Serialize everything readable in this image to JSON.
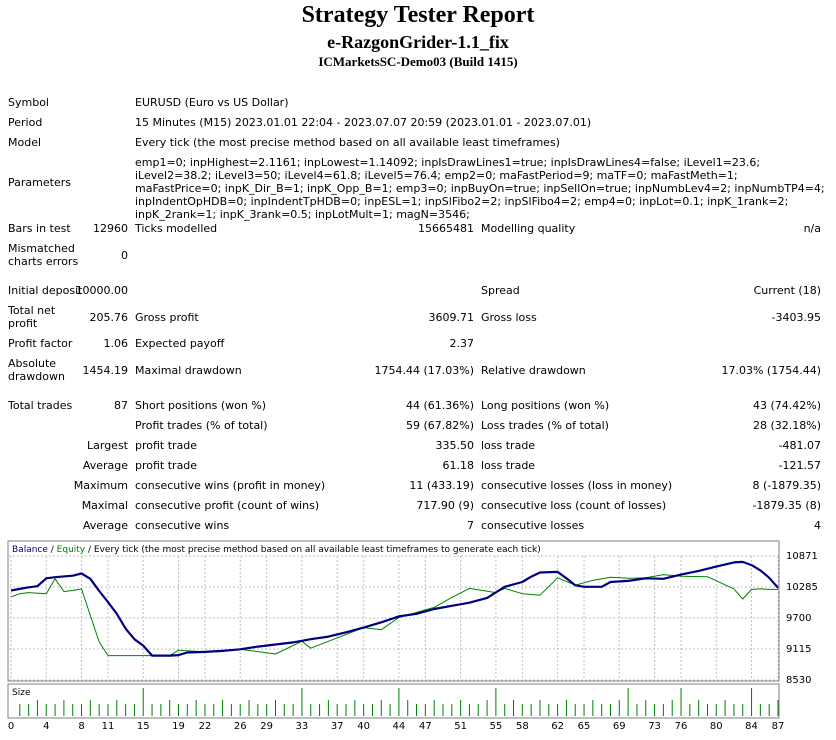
{
  "report": {
    "title": "Strategy Tester Report",
    "expert": "e-RazgonGrider-1.1_fix",
    "account": "ICMarketsSC-Demo03 (Build 1415)"
  },
  "settings": {
    "symbol_label": "Symbol",
    "symbol_value": "EURUSD (Euro vs US Dollar)",
    "period_label": "Period",
    "period_value": "15 Minutes (M15) 2023.01.01 22:04 - 2023.07.07 20:59 (2023.01.01 - 2023.07.01)",
    "model_label": "Model",
    "model_value": "Every tick (the most precise method based on all available least timeframes)",
    "parameters_label": "Parameters",
    "parameters_value": "emp1=0; inpHighest=2.1161; inpLowest=1.14092; inpIsDrawLines1=true; inpIsDrawLines4=false; iLevel1=23.6; iLevel2=38.2; iLevel3=50; iLevel4=61.8; iLevel5=76.4; emp2=0; maFastPeriod=9; maTF=0; maFastMeth=1; maFastPrice=0; inpK_Dir_B=1; inpK_Opp_B=1; emp3=0; inpBuyOn=true; inpSellOn=true; inpNumbLev4=2; inpNumbTP4=4; inpIndentOpHDB=0; inpIndentTpHDB=0; inpESL=1; inpSlFibo2=2; inpSlFibo4=2; emp4=0; inpLot=0.1; inpK_1rank=2; inpK_2rank=1; inpK_3rank=0.5; inpLotMult=1; magN=3546;"
  },
  "stats": {
    "bars_label": "Bars in test",
    "bars_value": "12960",
    "ticks_label": "Ticks modelled",
    "ticks_value": "15665481",
    "quality_label": "Modelling quality",
    "quality_value": "n/a",
    "mismatch_label": "Mismatched charts errors",
    "mismatch_value": "0",
    "deposit_label": "Initial deposit",
    "deposit_value": "10000.00",
    "spread_label": "Spread",
    "spread_value": "Current (18)",
    "netprofit_label": "Total net profit",
    "netprofit_value": "205.76",
    "grossprofit_label": "Gross profit",
    "grossprofit_value": "3609.71",
    "grossloss_label": "Gross loss",
    "grossloss_value": "-3403.95",
    "pf_label": "Profit factor",
    "pf_value": "1.06",
    "payoff_label": "Expected payoff",
    "payoff_value": "2.37",
    "absdd_label": "Absolute drawdown",
    "absdd_value": "1454.19",
    "maxdd_label": "Maximal drawdown",
    "maxdd_value": "1754.44 (17.03%)",
    "reldd_label": "Relative drawdown",
    "reldd_value": "17.03% (1754.44)",
    "trades_label": "Total trades",
    "trades_value": "87",
    "short_label": "Short positions (won %)",
    "short_value": "44 (61.36%)",
    "long_label": "Long positions (won %)",
    "long_value": "43 (74.42%)",
    "ptrades_label": "Profit trades (% of total)",
    "ptrades_value": "59 (67.82%)",
    "ltrades_label": "Loss trades (% of total)",
    "ltrades_value": "28 (32.18%)",
    "largest_label": "Largest",
    "lpt_label": "profit trade",
    "lpt_value": "335.50",
    "llt_label": "loss trade",
    "llt_value": "-481.07",
    "average_label": "Average",
    "apt_label": "profit trade",
    "apt_value": "61.18",
    "alt_label": "loss trade",
    "alt_value": "-121.57",
    "maximum_label": "Maximum",
    "mcw_label": "consecutive wins (profit in money)",
    "mcw_value": "11 (433.19)",
    "mcl_label": "consecutive losses (loss in money)",
    "mcl_value": "8 (-1879.35)",
    "maximal_label": "Maximal",
    "mcp_label": "consecutive profit (count of wins)",
    "mcp_value": "717.90 (9)",
    "mcloss_label": "consecutive loss (count of losses)",
    "mcloss_value": "-1879.35 (8)",
    "average2_label": "Average",
    "acw_label": "consecutive wins",
    "acw_value": "7",
    "acl_label": "consecutive losses",
    "acl_value": "4"
  },
  "chart_data": {
    "type": "line",
    "legend_balance": "Balance",
    "legend_sep": " / ",
    "legend_equity": "Equity",
    "legend_rest": " / Every tick (the most precise method based on all available least timeframes to generate each tick)",
    "y_ticks": [
      "10871",
      "10285",
      "9700",
      "9115",
      "8530"
    ],
    "ylim": [
      8530,
      10871
    ],
    "x_ticks": [
      "0",
      "4",
      "8",
      "11",
      "15",
      "19",
      "22",
      "26",
      "29",
      "33",
      "37",
      "40",
      "44",
      "47",
      "51",
      "55",
      "58",
      "62",
      "65",
      "69",
      "73",
      "76",
      "80",
      "84",
      "87"
    ],
    "xlim": [
      0,
      87
    ],
    "size_label": "Size",
    "colors": {
      "balance": "#000080",
      "equity": "#008000",
      "grid": "#c0c0c0"
    },
    "series": [
      {
        "name": "Balance",
        "x": [
          0,
          2,
          3,
          4,
          5,
          7,
          8,
          9,
          10,
          11,
          12,
          13,
          14,
          15,
          16,
          17,
          18,
          19,
          20,
          22,
          24,
          26,
          28,
          30,
          32,
          34,
          36,
          38,
          40,
          42,
          44,
          46,
          48,
          50,
          52,
          54,
          56,
          58,
          59,
          60,
          62,
          63,
          64,
          65,
          67,
          68,
          70,
          72,
          74,
          76,
          78,
          80,
          82,
          83,
          84,
          85,
          86,
          87
        ],
        "y": [
          10220,
          10280,
          10300,
          10450,
          10470,
          10500,
          10540,
          10440,
          10210,
          10000,
          9780,
          9500,
          9300,
          9180,
          8990,
          8990,
          8990,
          9000,
          9050,
          9060,
          9080,
          9110,
          9160,
          9200,
          9240,
          9300,
          9350,
          9430,
          9520,
          9620,
          9730,
          9780,
          9870,
          9930,
          9990,
          10080,
          10290,
          10380,
          10480,
          10560,
          10570,
          10450,
          10320,
          10290,
          10290,
          10380,
          10400,
          10450,
          10440,
          10520,
          10590,
          10670,
          10750,
          10760,
          10700,
          10600,
          10460,
          10270
        ]
      },
      {
        "name": "Equity",
        "x": [
          0,
          1,
          2,
          4,
          5,
          6,
          7,
          8,
          9,
          10,
          11,
          15,
          18,
          19,
          22,
          26,
          30,
          33,
          34,
          36,
          40,
          42,
          44,
          48,
          50,
          52,
          55,
          56,
          58,
          60,
          62,
          64,
          66,
          68,
          70,
          72,
          74,
          76,
          79,
          82,
          83,
          84,
          85,
          86,
          87
        ],
        "y": [
          10100,
          10160,
          10180,
          10160,
          10440,
          10200,
          10220,
          10250,
          9750,
          9250,
          8990,
          8990,
          8990,
          9090,
          9060,
          9110,
          9020,
          9260,
          9130,
          9260,
          9520,
          9480,
          9710,
          9900,
          10090,
          10260,
          10180,
          10260,
          10160,
          10130,
          10460,
          10320,
          10410,
          10470,
          10450,
          10460,
          10520,
          10490,
          10480,
          10250,
          10060,
          10240,
          10250,
          10240,
          10240
        ]
      }
    ]
  }
}
